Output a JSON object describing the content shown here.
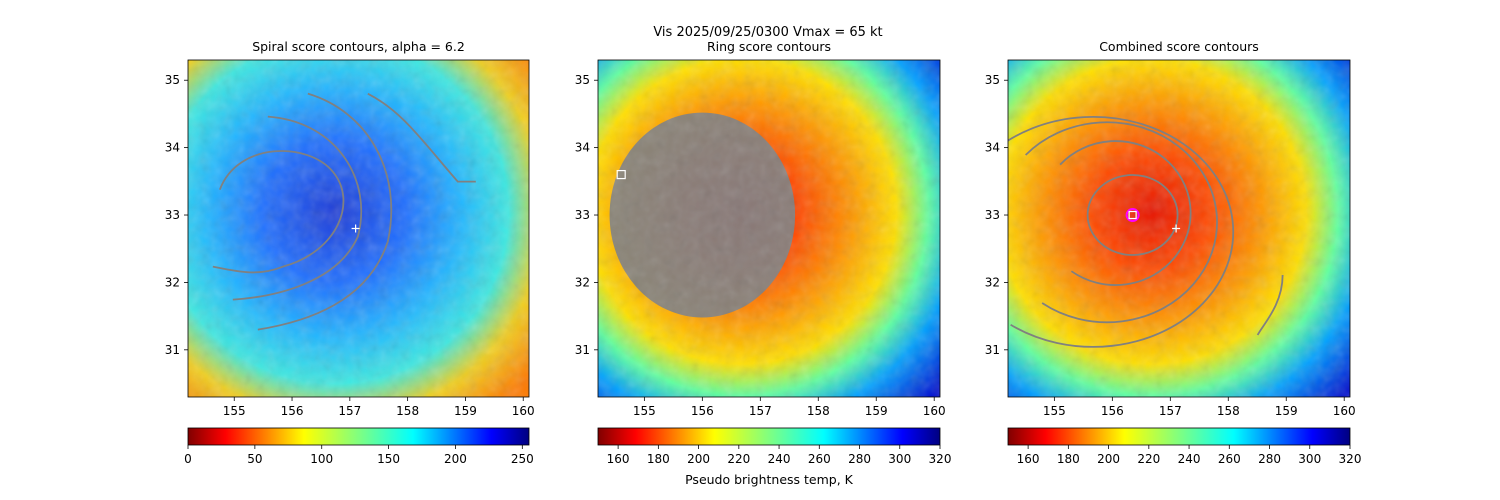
{
  "suptitle_line1": "Vis  2025/09/25/0300    Vmax = 65 kt",
  "colors": {
    "contour": "#808080",
    "center_marker": "#ffffff",
    "best_marker_ring": "#ff00ff"
  },
  "chart_data": [
    {
      "type": "heatmap",
      "title": "Spiral score contours, alpha =  6.2",
      "colormap": "jet_r",
      "xlim": [
        154.2,
        160.1
      ],
      "ylim": [
        30.3,
        35.3
      ],
      "xticks": [
        "155",
        "156",
        "157",
        "158",
        "159",
        "160"
      ],
      "yticks": [
        "31",
        "32",
        "33",
        "34",
        "35"
      ],
      "colorbar": {
        "range": [
          0,
          255
        ],
        "ticks": [
          "0",
          "50",
          "100",
          "150",
          "200",
          "250"
        ],
        "label": ""
      },
      "center_marker": {
        "x": 157.1,
        "y": 32.8
      },
      "contours": 5
    },
    {
      "type": "heatmap",
      "title": "Ring score contours",
      "colormap": "jet_r",
      "xlim": [
        154.2,
        160.1
      ],
      "ylim": [
        30.3,
        35.3
      ],
      "xticks": [
        "155",
        "156",
        "157",
        "158",
        "159",
        "160"
      ],
      "yticks": [
        "31",
        "32",
        "33",
        "34",
        "35"
      ],
      "colorbar": {
        "range": [
          150,
          320
        ],
        "ticks": [
          "160",
          "180",
          "200",
          "220",
          "240",
          "260",
          "280",
          "300",
          "320"
        ],
        "label": "Pseudo brightness temp, K"
      },
      "ring_marker": {
        "x": 154.6,
        "y": 33.6
      },
      "ring_region": {
        "center_x": 156.0,
        "center_y": 33.0,
        "radius_deg": 1.6
      }
    },
    {
      "type": "heatmap",
      "title": "Combined score contours",
      "colormap": "jet_r",
      "xlim": [
        154.2,
        160.1
      ],
      "ylim": [
        30.3,
        35.3
      ],
      "xticks": [
        "155",
        "156",
        "157",
        "158",
        "159",
        "160"
      ],
      "yticks": [
        "31",
        "32",
        "33",
        "34",
        "35"
      ],
      "colorbar": {
        "range": [
          150,
          320
        ],
        "ticks": [
          "160",
          "180",
          "200",
          "220",
          "240",
          "260",
          "280",
          "300",
          "320"
        ],
        "label": ""
      },
      "center_marker": {
        "x": 157.1,
        "y": 32.8
      },
      "best_center": {
        "x": 156.35,
        "y": 33.0
      },
      "contours": 6
    }
  ]
}
